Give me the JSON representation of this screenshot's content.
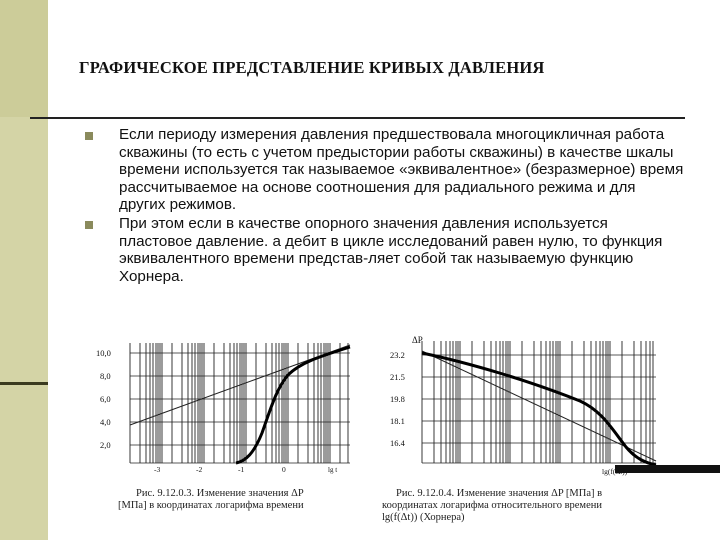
{
  "slide": {
    "title": "ГРАФИЧЕСКОЕ ПРЕДСТАВЛЕНИЕ КРИВЫХ ДАВЛЕНИЯ",
    "bullets": [
      "Если периоду измерения давления предшествовала многоцикличная работа скважины (то есть с учетом предыстории работы скважины) в качестве шкалы времени используется так называемое «эквивалентное» (безразмерное) время рассчитываемое на основе соотношения  для радиального режима и для других режимов.",
      "При этом если в качестве опорного значения давления используется пластовое давление. а дебит в цикле исследований равен нулю, то функция эквивалентного времени представ-ляет собой так называемую функцию Хорнера."
    ]
  },
  "figures": {
    "left": {
      "y_ticks": [
        "10,0",
        "8,0",
        "6,0",
        "4,0",
        "2,0"
      ],
      "x_ticks": [
        "-3",
        "-2",
        "-1",
        "0"
      ],
      "x_label": "lg t",
      "caption_line1": "Рис. 9.12.0.3. Изменение значения ΔP",
      "caption_line2": "[МПа] в координатах логарифма времени"
    },
    "right": {
      "y_title": "ΔP",
      "y_ticks": [
        "23.2",
        "21.5",
        "19.8",
        "18.1",
        "16.4"
      ],
      "x_label": "lg(f(Δt))",
      "caption_line1": "Рис. 9.12.0.4. Изменение значения ΔP [МПа] в",
      "caption_line2": "координатах логарифма относительного времени",
      "caption_line3": "lg(f(Δt)) (Хорнера)"
    }
  },
  "colors": {
    "accent_band": "#cccc99",
    "bullet_mark": "#8a8a5c"
  }
}
